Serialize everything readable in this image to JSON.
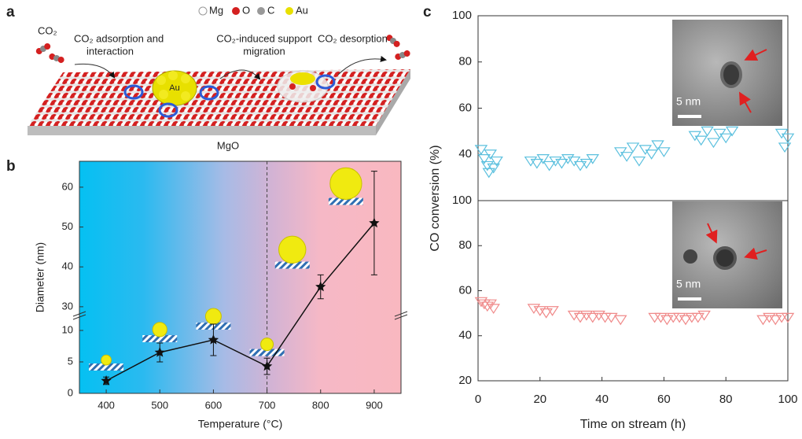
{
  "illustration": {
    "panel_label": "a",
    "legend": [
      "Mg",
      "O",
      "C",
      "Au"
    ],
    "co2_label": "CO₂",
    "step1": [
      "CO₂ adsorption and",
      "interaction"
    ],
    "cluster_label": "Au",
    "step2": [
      "CO₂-induced support",
      "migration"
    ],
    "step3": "CO₂ desorption",
    "support_label": "MgO"
  },
  "chart_data": [
    {
      "type": "line",
      "panel_label": "b",
      "xlabel": "Temperature (°C)",
      "ylabel": "Diameter (nm)",
      "x": [
        400,
        500,
        600,
        700,
        800,
        900
      ],
      "values": [
        2,
        6.5,
        8.5,
        4.3,
        35,
        51
      ],
      "errors": [
        0.6,
        1.5,
        2.5,
        1.3,
        3,
        13
      ],
      "color": "#111111",
      "xlim": [
        350,
        950
      ],
      "xticks": [
        400,
        500,
        600,
        700,
        800,
        900
      ],
      "y_break": {
        "lower": {
          "ylim": [
            0,
            12
          ],
          "yticks": [
            0,
            5,
            10
          ]
        },
        "upper": {
          "ylim": [
            28,
            66.5
          ],
          "yticks": [
            30,
            40,
            50,
            60
          ]
        }
      },
      "vline": 700
    },
    {
      "type": "scatter",
      "panel_label": "c",
      "xlabel": "Time on stream (h)",
      "ylabel": "CO conversion (%)",
      "xlim": [
        0,
        100
      ],
      "xticks": [
        0,
        20,
        40,
        60,
        80,
        100
      ],
      "subplots": [
        {
          "ylim": [
            20,
            100
          ],
          "yticks": [
            40,
            60,
            80,
            100
          ],
          "inset_scale_label": "5 nm",
          "series": [
            {
              "color": "#5bc0de",
              "x": [
                1,
                2,
                3,
                3.5,
                4,
                5,
                6,
                17,
                19,
                21,
                23,
                25,
                27,
                29,
                31,
                33,
                35,
                37,
                46,
                48,
                50,
                52,
                54,
                56,
                58,
                60,
                70,
                72,
                74,
                76,
                78,
                80,
                82,
                98,
                99,
                100
              ],
              "values": [
                42,
                38,
                35,
                32,
                40,
                34,
                37,
                37,
                36,
                38,
                35,
                37,
                36,
                38,
                37,
                35,
                36,
                38,
                41,
                39,
                43,
                37,
                42,
                40,
                44,
                41,
                48,
                46,
                50,
                45,
                49,
                47,
                50,
                49,
                43,
                47
              ]
            }
          ]
        },
        {
          "ylim": [
            20,
            100
          ],
          "yticks": [
            20,
            40,
            60,
            80,
            100
          ],
          "inset_scale_label": "5 nm",
          "series": [
            {
              "color": "#f08a8a",
              "x": [
                1,
                2,
                3,
                4,
                5,
                18,
                20,
                22,
                24,
                31,
                33,
                35,
                37,
                39,
                41,
                43,
                46,
                57,
                59,
                61,
                63,
                65,
                67,
                69,
                71,
                73,
                92,
                94,
                96,
                98,
                100
              ],
              "values": [
                55,
                54,
                53,
                54,
                52,
                52,
                51,
                50,
                51,
                49,
                48,
                49,
                48,
                49,
                48,
                48,
                47,
                48,
                48,
                47,
                48,
                48,
                47,
                48,
                48,
                49,
                47,
                48,
                47,
                48,
                48
              ]
            }
          ]
        }
      ]
    }
  ]
}
